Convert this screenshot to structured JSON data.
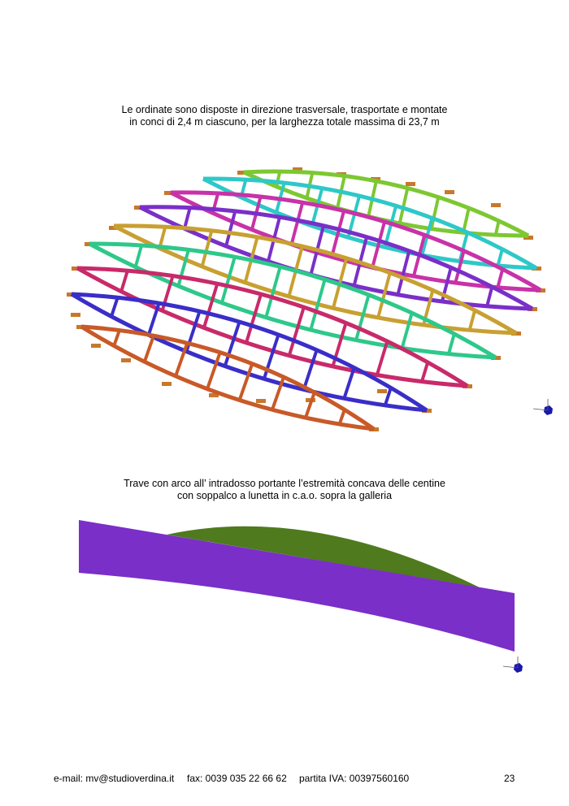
{
  "figure1": {
    "caption_line1": "Le ordinate sono disposte in direzione trasversale, trasportate e montate",
    "caption_line2": "in conci di 2,4 m ciascuno, per la larghezza totale massima di 23,7 m",
    "rib_colors": [
      "#7dc832",
      "#2ec8c8",
      "#c832a8",
      "#7a2fc8",
      "#c8a032",
      "#2ec88a",
      "#c82a6a",
      "#3a2ec8",
      "#c85a28"
    ],
    "support_color": "#c8782a"
  },
  "figure2": {
    "caption_line1": "Trave con arco all’ intradosso portante l’estremità concava delle centine",
    "caption_line2": "con soppalco a lunetta in c.a.o. sopra la galleria",
    "beam_color": "#7a2fc8",
    "arch_color": "#4f7a1e"
  },
  "footer": {
    "email": "e-mail: mv@studioverdina.it",
    "fax": "fax: 0039 035 22 66 62",
    "vat": "partita IVA:   00397560160",
    "page_number": "23"
  }
}
